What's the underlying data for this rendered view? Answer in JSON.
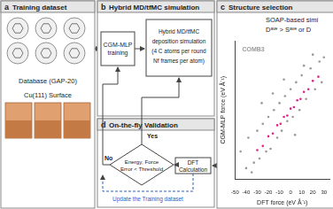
{
  "panels": {
    "a": {
      "letter": "a",
      "title": "Training dataset",
      "labels": [
        "Database (GAP-20)",
        "Cu(111) Surface"
      ]
    },
    "b": {
      "letter": "b",
      "title": "Hybrid MD/tfMC simulation",
      "training_box": [
        "CGM-MLP",
        "training"
      ],
      "simulation_box": [
        "Hybrid MD/tfMC",
        "deposition simulation",
        "(4 C atoms per round",
        "Nf frames per atom)"
      ]
    },
    "c": {
      "letter": "c",
      "title": "Structure selection",
      "lines": [
        "SOAP-based simi",
        "Dᵃᵛᵉ > Sᵃᵛᵉ or D"
      ]
    },
    "d": {
      "letter": "d",
      "title": "On-the-fly Validation",
      "decision": [
        "Energy, Force",
        "Error < Threshold"
      ],
      "yes": "Yes",
      "no": "No",
      "dft_box": "DFT Calculation",
      "update": "Update the Training dataset"
    }
  },
  "chart_data": {
    "type": "scatter",
    "x_label": "DFT force (eV Å⁻¹)",
    "y_label": "CGM-MLP force (eV Å⁻¹)",
    "xlim": [
      -50,
      35
    ],
    "xticks": [
      -50,
      -40,
      -30,
      -20,
      -10,
      0,
      10,
      20,
      30
    ],
    "ylim": [
      -50,
      50
    ],
    "tick_labels": "x",
    "grid": false,
    "series": [
      {
        "name": "COMB3",
        "color": "#9a9a9a",
        "marker": "circle",
        "x": [
          -45,
          -40,
          -38,
          -33,
          -30,
          -28,
          -25,
          -22,
          -20,
          -18,
          -15,
          -12,
          -10,
          -8,
          -5,
          -3,
          0,
          2,
          5,
          8,
          10,
          14,
          18,
          22,
          26,
          30,
          -35,
          -26,
          -16,
          -6,
          4,
          12,
          20,
          28
        ],
        "values": [
          -30,
          -42,
          -20,
          -38,
          -15,
          -35,
          -10,
          -30,
          -5,
          -28,
          0,
          -20,
          5,
          -15,
          10,
          -8,
          15,
          -5,
          20,
          0,
          25,
          8,
          30,
          15,
          35,
          38,
          -45,
          5,
          12,
          22,
          -18,
          32,
          40,
          20
        ]
      },
      {
        "color": "#e0218a",
        "marker": "circle",
        "x": [
          -30,
          -25,
          -20,
          -16,
          -12,
          -9,
          -6,
          -3,
          0,
          3,
          6,
          9,
          12,
          16,
          20,
          25
        ],
        "values": [
          -29,
          -26,
          -19,
          -17,
          -11,
          -10,
          -5,
          -4,
          1,
          2,
          7,
          8,
          13,
          15,
          21,
          24
        ]
      }
    ]
  }
}
